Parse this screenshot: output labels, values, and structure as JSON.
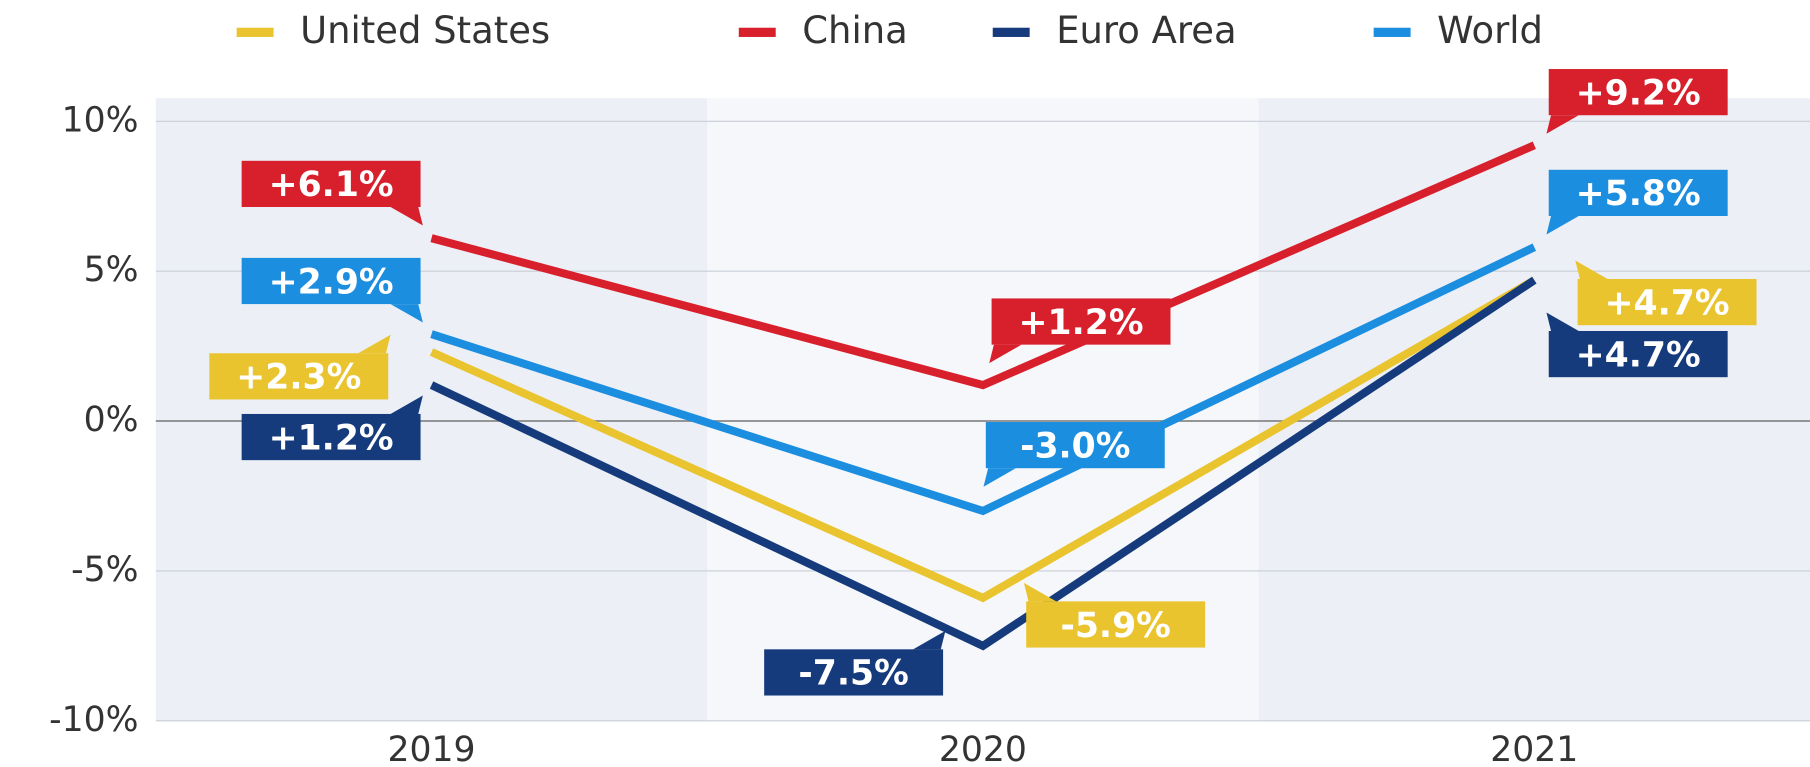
{
  "chart_data": {
    "type": "line",
    "categories": [
      "2019",
      "2020",
      "2021"
    ],
    "series": [
      {
        "name": "United States",
        "color": "#e9c42f",
        "values": [
          2.3,
          -5.9,
          4.7
        ],
        "value_labels": [
          "+2.3%",
          "-5.9%",
          "+4.7%"
        ]
      },
      {
        "name": "China",
        "color": "#d8202d",
        "values": [
          6.1,
          1.2,
          9.2
        ],
        "value_labels": [
          "+6.1%",
          "+1.2%",
          "+9.2%"
        ]
      },
      {
        "name": "Euro Area",
        "color": "#163b7c",
        "values": [
          1.2,
          -7.5,
          4.7
        ],
        "value_labels": [
          "+1.2%",
          "-7.5%",
          "+4.7%"
        ]
      },
      {
        "name": "World",
        "color": "#1c8ee0",
        "values": [
          2.9,
          -3.0,
          5.8
        ],
        "value_labels": [
          "+2.9%",
          "-3.0%",
          "+5.8%"
        ]
      }
    ],
    "ylim": [
      -10,
      10
    ],
    "yticks": [
      {
        "value": -10,
        "label": "-10%"
      },
      {
        "value": -5,
        "label": "-5%"
      },
      {
        "value": 0,
        "label": "0%"
      },
      {
        "value": 5,
        "label": "5%"
      },
      {
        "value": 10,
        "label": "10%"
      }
    ],
    "grid": true,
    "legend": "top"
  }
}
